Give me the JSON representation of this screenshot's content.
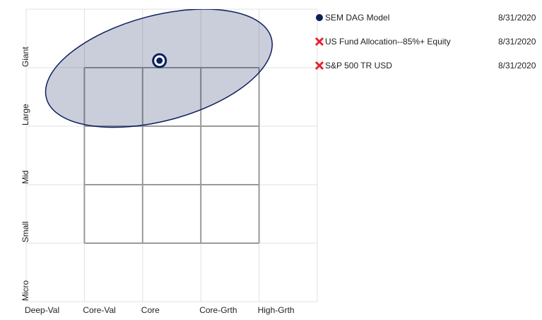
{
  "chart_data": {
    "type": "style-map",
    "xlim": [
      0,
      5
    ],
    "xticks": [
      {
        "value": 0,
        "label": "Deep-Val"
      },
      {
        "value": 1,
        "label": "Core-Val"
      },
      {
        "value": 2,
        "label": "Core"
      },
      {
        "value": 3,
        "label": "Core-Grth"
      },
      {
        "value": 4,
        "label": "High-Grth"
      },
      5
    ],
    "ylim": [
      0,
      5
    ],
    "yticks": [
      {
        "value": 0,
        "label": "Micro"
      },
      {
        "value": 1,
        "label": "Small"
      },
      {
        "value": 2,
        "label": "Mid"
      },
      {
        "value": 3,
        "label": "Large"
      },
      {
        "value": 4,
        "label": "Giant"
      },
      5
    ],
    "grid": true,
    "style_box": [
      1,
      4
    ],
    "series": [
      {
        "name": "SEM DAG Model",
        "date": "8/31/2020",
        "color": "#0d1f5c",
        "marker": "circle",
        "x": 2.29,
        "y": 4.12,
        "zone": {
          "cx": 2.28,
          "cy": 3.99,
          "rx": 2.0,
          "ry": 0.9,
          "rotation": 15
        }
      },
      {
        "name": "US Fund Allocation--85%+ Equity",
        "date": "8/31/2020",
        "color": "#e8202a",
        "marker": "x"
      },
      {
        "name": "S&P 500 TR USD",
        "date": "8/31/2020",
        "color": "#e8202a",
        "marker": "x"
      }
    ]
  }
}
